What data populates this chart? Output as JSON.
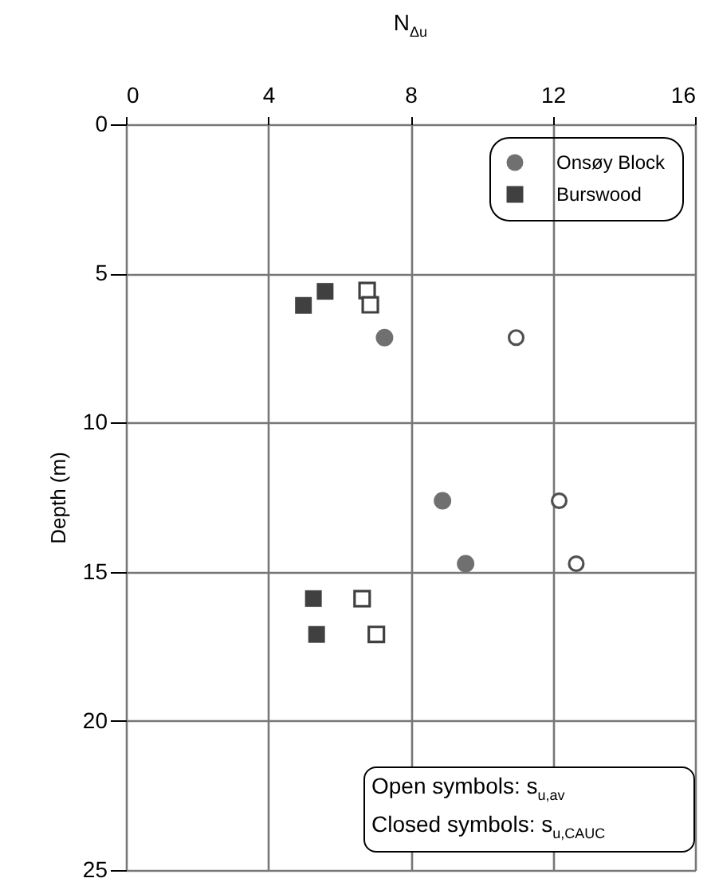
{
  "chart_data": {
    "type": "scatter",
    "xlabel": "N$_{Δu}$",
    "ylabel": "Depth (m)",
    "xlim": [
      0,
      16
    ],
    "xticks": [
      0,
      4,
      8,
      12,
      16
    ],
    "ylim": [
      25,
      0
    ],
    "yticks": [
      0,
      5,
      10,
      15,
      20,
      25
    ],
    "grid": true,
    "legend": "top right",
    "annotations": [
      "Open symbols: s$_{u,av}$\nClosed symbols: s$_{u,CAUC}$"
    ],
    "series": [
      {
        "name": "Onsøy Block",
        "color": "#707070",
        "marker": "circle",
        "x": [
          7.27,
          8.9,
          9.55
        ],
        "values": [
          7.15,
          12.62,
          14.73
        ]
      },
      {
        "name": "Burswood",
        "color": "#404040",
        "marker": "square",
        "x": [
          4.99,
          5.6,
          5.27,
          5.36
        ],
        "values": [
          6.07,
          5.6,
          15.9,
          17.1
        ]
      },
      {
        "color": "#505050",
        "marker": "circle",
        "x": [
          10.97,
          12.18,
          12.66
        ],
        "values": [
          7.15,
          12.62,
          14.73
        ]
      },
      {
        "color": "#404040",
        "marker": "square",
        "x": [
          6.78,
          6.87,
          6.64,
          7.04
        ],
        "values": [
          5.57,
          6.05,
          15.9,
          17.1
        ]
      }
    ]
  }
}
